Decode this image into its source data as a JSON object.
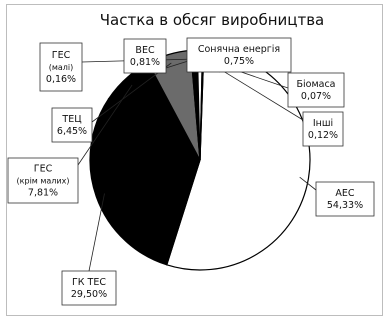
{
  "chart_data": {
    "type": "pie",
    "title": "Частка в обсяг виробництва",
    "slices": [
      {
        "name": "АЕС",
        "value_label": "54,33%",
        "value": 54.33,
        "color": "#ffffff"
      },
      {
        "name": "ГК ТЕС",
        "value_label": "29,50%",
        "value": 29.5,
        "color": "#000000"
      },
      {
        "name": "ГЕС",
        "sub": "(крім малих)",
        "value_label": "7,81%",
        "value": 7.81,
        "color": "#000000"
      },
      {
        "name": "ТЕЦ",
        "value_label": "6,45%",
        "value": 6.45,
        "color": "#6b6b6b"
      },
      {
        "name": "ГЕС",
        "sub": "(малі)",
        "value_label": "0,16%",
        "value": 0.16,
        "color": "#ffffff"
      },
      {
        "name": "ВЕС",
        "value_label": "0,81%",
        "value": 0.81,
        "color": "#000000"
      },
      {
        "name": "Сонячна енергія",
        "value_label": "0,75%",
        "value": 0.75,
        "color": "#ffffff"
      },
      {
        "name": "Біомаса",
        "value_label": "0,07%",
        "value": 0.07,
        "color": "#000000"
      },
      {
        "name": "Інші",
        "value_label": "0,12%",
        "value": 0.12,
        "color": "#ffffff"
      }
    ],
    "legend": "none"
  }
}
